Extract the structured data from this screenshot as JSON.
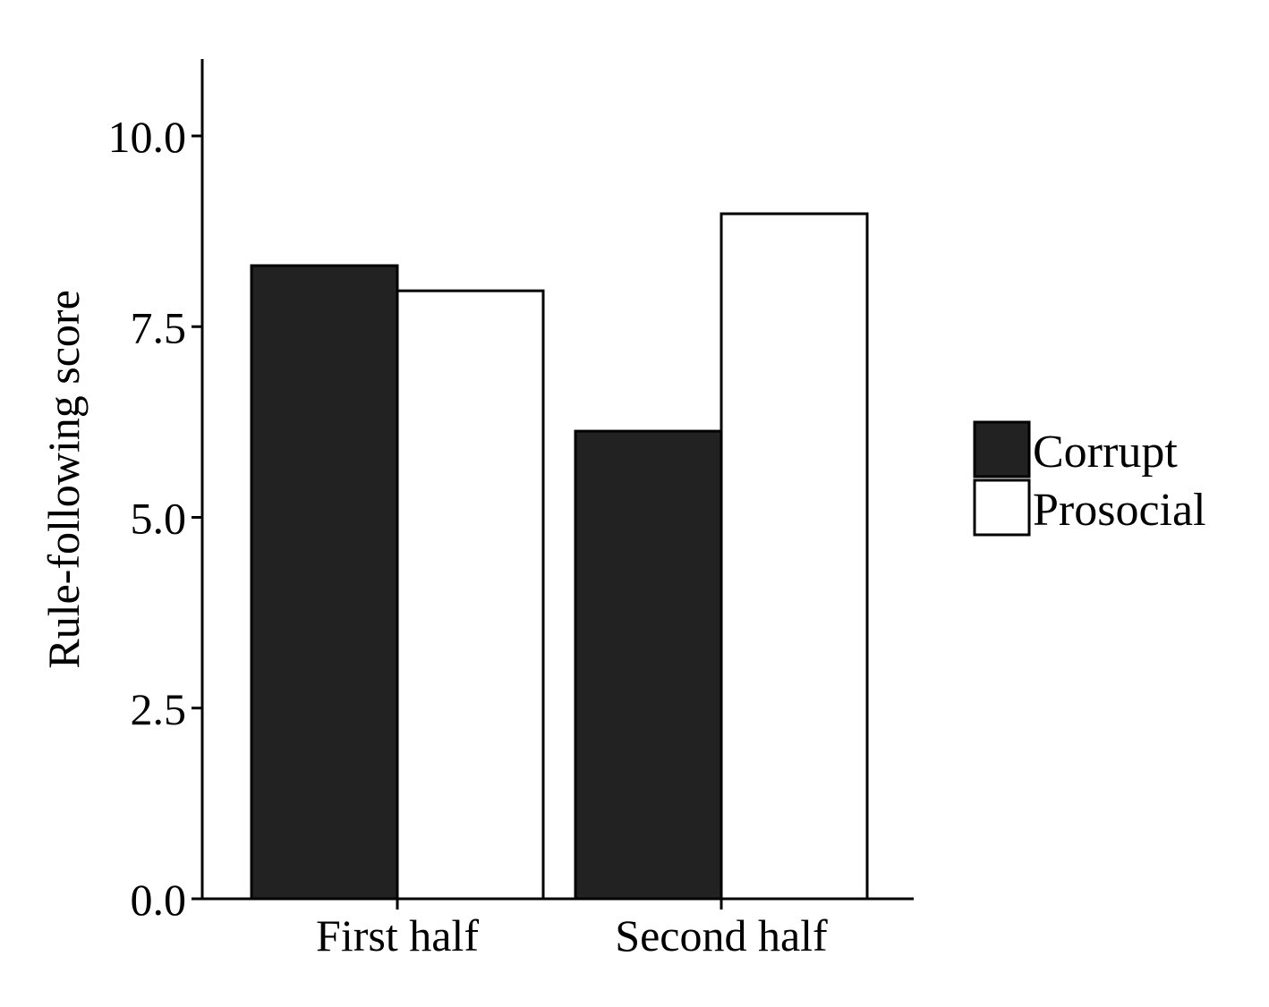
{
  "chart_data": {
    "type": "bar",
    "categories": [
      "First half",
      "Second half"
    ],
    "series": [
      {
        "name": "Corrupt",
        "values": [
          8.3,
          6.13
        ],
        "color": "#222222"
      },
      {
        "name": "Prosocial",
        "values": [
          7.97,
          8.98
        ],
        "color": "#ffffff"
      }
    ],
    "ylabel": "Rule-following score",
    "xlabel": "",
    "ylim": [
      0,
      11
    ],
    "yticks": [
      0,
      2.5,
      5,
      7.5,
      10
    ],
    "ytick_labels": [
      "0.0",
      "2.5",
      "5.0",
      "7.5",
      "10.0"
    ],
    "legend_position": "right",
    "grid": false
  }
}
